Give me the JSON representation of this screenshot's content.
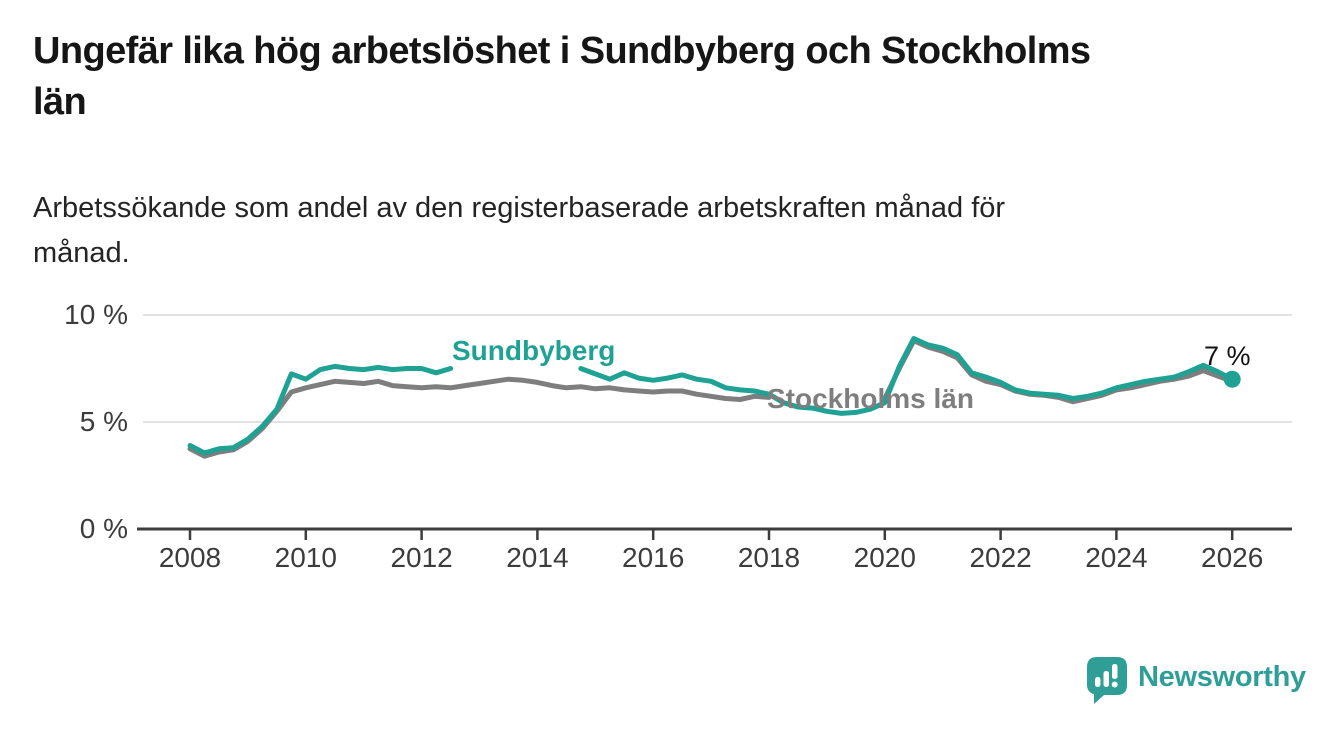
{
  "title": {
    "lines": [
      "Ungefär lika hög arbetslöshet i Sundbyberg och Stockholms",
      "län"
    ]
  },
  "subtitle": {
    "lines": [
      "Arbetssökande som andel av den registerbaserade arbetskraften månad för",
      "månad."
    ]
  },
  "colors": {
    "accent_teal": "#1fa294",
    "line_gray": "#7e7e7e",
    "axis_text": "#3c3c3c",
    "axis_line": "#3d3d3d",
    "grid": "#d8d8d8",
    "annotation_text": "#111111",
    "logo_teal": "#2e9e97"
  },
  "chart_data": {
    "type": "line",
    "x_start": 2008,
    "x_step_years": 0.25,
    "x_axis": {
      "range": [
        2007.05,
        2027.1
      ],
      "ticks": [
        {
          "value": 2008,
          "label": "2008"
        },
        {
          "value": 2010,
          "label": "2010"
        },
        {
          "value": 2012,
          "label": "2012"
        },
        {
          "value": 2014,
          "label": "2014"
        },
        {
          "value": 2016,
          "label": "2016"
        },
        {
          "value": 2018,
          "label": "2018"
        },
        {
          "value": 2020,
          "label": "2020"
        },
        {
          "value": 2022,
          "label": "2022"
        },
        {
          "value": 2024,
          "label": "2024"
        },
        {
          "value": 2026,
          "label": "2026"
        }
      ]
    },
    "y_axis": {
      "range": [
        0,
        10.5
      ],
      "unit": "%",
      "ticks": [
        {
          "value": 0,
          "label": "0 %"
        },
        {
          "value": 5,
          "label": "5 %"
        },
        {
          "value": 10,
          "label": "10 %"
        }
      ],
      "grid_on": [
        5,
        10
      ]
    },
    "series": [
      {
        "name": "Sundbyberg",
        "color": "#1fa294",
        "label_gap": [
          2012.55,
          2014.7
        ],
        "end_dot": {
          "x": 2026.0,
          "value": 7.0
        },
        "values": [
          3.9,
          3.55,
          3.75,
          3.8,
          4.2,
          4.8,
          5.6,
          7.25,
          7.0,
          7.45,
          7.6,
          7.5,
          7.45,
          7.55,
          7.45,
          7.5,
          7.5,
          7.3,
          7.5,
          7.45,
          7.5,
          7.55,
          7.6,
          7.5,
          7.45,
          7.5,
          7.45,
          7.5,
          7.25,
          7.0,
          7.3,
          7.05,
          6.95,
          7.05,
          7.2,
          7.0,
          6.9,
          6.6,
          6.5,
          6.45,
          6.3,
          5.9,
          5.7,
          5.65,
          5.5,
          5.4,
          5.45,
          5.6,
          5.9,
          7.6,
          8.9,
          8.6,
          8.45,
          8.15,
          7.3,
          7.1,
          6.85,
          6.5,
          6.35,
          6.3,
          6.25,
          6.1,
          6.2,
          6.35,
          6.6,
          6.75,
          6.9,
          7.0,
          7.1,
          7.35,
          7.65,
          7.35,
          7.0
        ]
      },
      {
        "name": "Stockholms län",
        "color": "#7e7e7e",
        "label_gap": [
          2018.05,
          2019.95
        ],
        "values": [
          3.75,
          3.4,
          3.6,
          3.7,
          4.1,
          4.7,
          5.5,
          6.4,
          6.6,
          6.75,
          6.9,
          6.85,
          6.8,
          6.9,
          6.7,
          6.65,
          6.6,
          6.65,
          6.6,
          6.7,
          6.8,
          6.9,
          7.0,
          6.95,
          6.85,
          6.7,
          6.6,
          6.65,
          6.55,
          6.6,
          6.5,
          6.45,
          6.4,
          6.45,
          6.45,
          6.3,
          6.2,
          6.1,
          6.05,
          6.2,
          6.15,
          6.0,
          5.95,
          5.9,
          5.85,
          5.8,
          5.85,
          5.95,
          6.1,
          7.5,
          8.8,
          8.5,
          8.3,
          8.0,
          7.2,
          6.9,
          6.75,
          6.45,
          6.3,
          6.25,
          6.15,
          5.95,
          6.1,
          6.25,
          6.5,
          6.6,
          6.75,
          6.9,
          7.0,
          7.15,
          7.4,
          7.15,
          6.9
        ]
      }
    ],
    "annotation": {
      "text": "7 %"
    }
  },
  "logo": {
    "text": "Newsworthy"
  }
}
